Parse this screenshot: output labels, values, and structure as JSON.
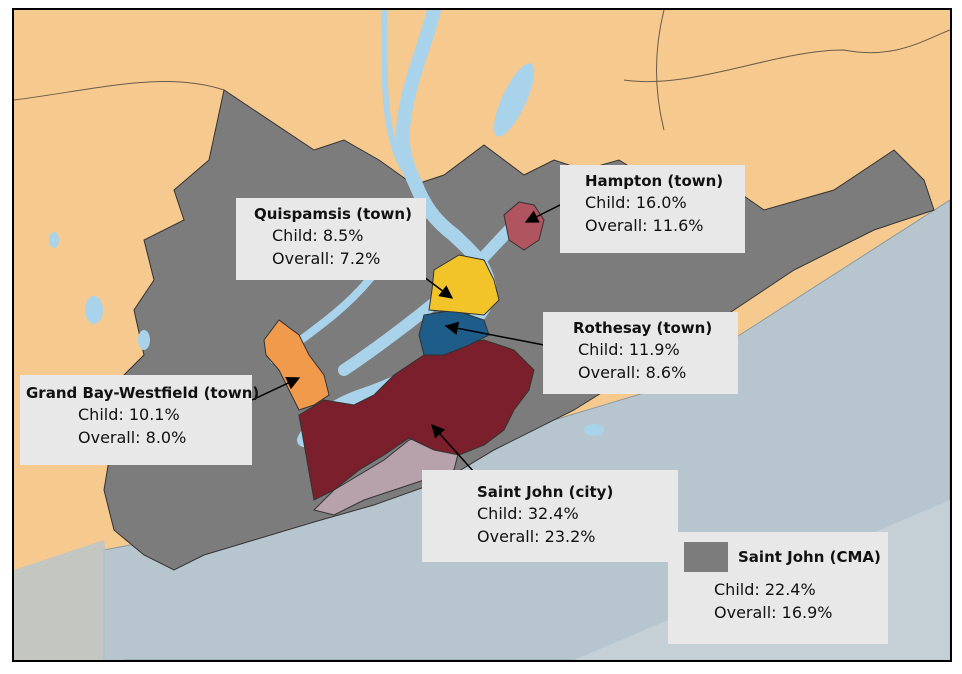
{
  "colors": {
    "land_background": "#f6c98e",
    "water": "#a8d3ea",
    "ocean": "#b7c6ce",
    "cma_gray": "#7c7c7c",
    "saint_john_city": "#7a1f2b",
    "saint_john_city_light": "#b7a1ab",
    "rothesay": "#1e5d8a",
    "quispamsis": "#f2c429",
    "hampton": "#b05560",
    "grand_bay_westfield": "#f19a4c",
    "label_box": "#e8e8e8"
  },
  "labels": {
    "hampton": {
      "title": "Hampton (town)",
      "child": "Child: 16.0%",
      "overall": "Overall: 11.6%"
    },
    "quispamsis": {
      "title": "Quispamsis (town)",
      "child": "Child: 8.5%",
      "overall": "Overall: 7.2%"
    },
    "rothesay": {
      "title": "Rothesay (town)",
      "child": "Child: 11.9%",
      "overall": "Overall: 8.6%"
    },
    "grand_bay_westfield": {
      "title": "Grand Bay-Westfield (town)",
      "child": "Child: 10.1%",
      "overall": "Overall: 8.0%"
    },
    "saint_john_city": {
      "title": "Saint John (city)",
      "child": "Child: 32.4%",
      "overall": "Overall: 23.2%"
    },
    "saint_john_cma": {
      "title": "Saint John (CMA)",
      "child": "Child: 22.4%",
      "overall": "Overall: 16.9%"
    }
  }
}
